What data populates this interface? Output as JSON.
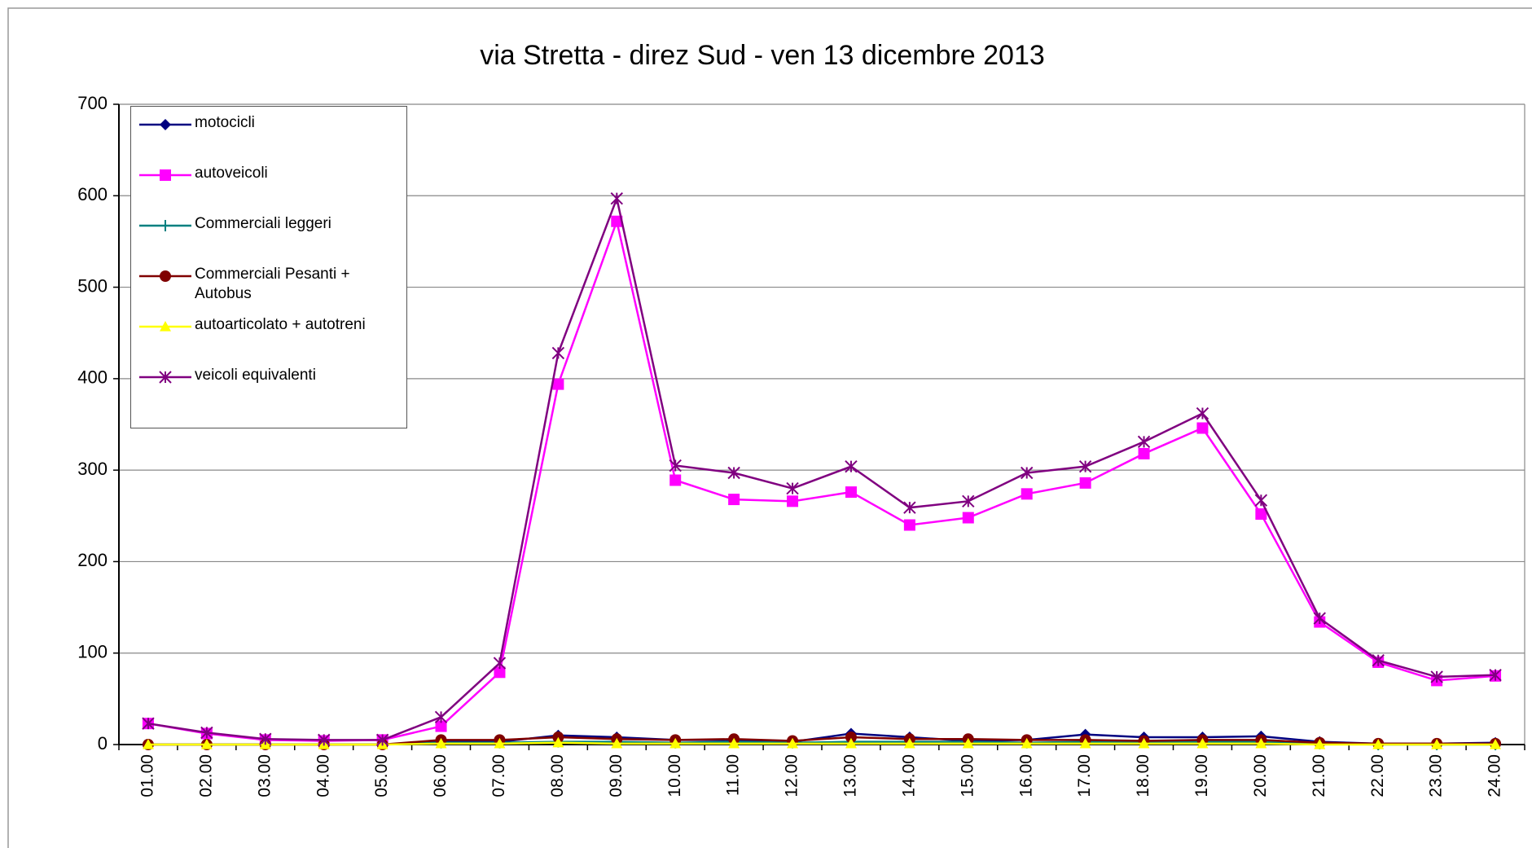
{
  "chart_data": {
    "type": "line",
    "title": "via  Stretta - direz Sud - ven 13 dicembre 2013",
    "categories": [
      "01.00",
      "02.00",
      "03.00",
      "04.00",
      "05.00",
      "06.00",
      "07.00",
      "08.00",
      "09.00",
      "10.00",
      "11.00",
      "12.00",
      "13.00",
      "14.00",
      "15.00",
      "16.00",
      "17.00",
      "18.00",
      "19.00",
      "20.00",
      "21.00",
      "22.00",
      "23.00",
      "24.00"
    ],
    "series": [
      {
        "name": "motocicli",
        "color": "#000080",
        "marker": "diamond",
        "values": [
          0,
          0,
          0,
          0,
          0,
          3,
          3,
          10,
          8,
          5,
          5,
          3,
          12,
          8,
          4,
          5,
          11,
          8,
          8,
          9,
          3,
          1,
          1,
          2
        ]
      },
      {
        "name": "autoveicoli",
        "color": "#ff00ff",
        "marker": "square",
        "values": [
          23,
          12,
          5,
          4,
          5,
          20,
          79,
          394,
          572,
          289,
          268,
          266,
          276,
          240,
          248,
          274,
          286,
          318,
          346,
          252,
          134,
          90,
          70,
          75
        ]
      },
      {
        "name": "Commerciali leggeri",
        "color": "#008080",
        "marker": "plus",
        "values": [
          0,
          0,
          0,
          0,
          0,
          2,
          2,
          3,
          3,
          2,
          3,
          2,
          3,
          3,
          3,
          2,
          3,
          3,
          3,
          3,
          1,
          0,
          0,
          0
        ]
      },
      {
        "name": "Commerciali Pesanti + Autobus",
        "color": "#800000",
        "marker": "circle",
        "values": [
          0,
          0,
          0,
          0,
          0,
          5,
          5,
          8,
          6,
          5,
          6,
          4,
          8,
          6,
          6,
          5,
          5,
          4,
          5,
          5,
          2,
          1,
          1,
          1
        ]
      },
      {
        "name": "autoarticolato + autotreni",
        "color": "#ffff00",
        "marker": "triangle",
        "values": [
          0,
          0,
          0,
          0,
          0,
          1,
          1,
          2,
          1,
          1,
          1,
          1,
          1,
          1,
          1,
          1,
          1,
          1,
          1,
          1,
          0,
          0,
          0,
          0
        ]
      },
      {
        "name": "veicoli equivalenti",
        "color": "#800080",
        "marker": "star",
        "values": [
          23,
          13,
          6,
          5,
          5,
          30,
          89,
          428,
          597,
          305,
          297,
          280,
          304,
          259,
          266,
          297,
          304,
          331,
          362,
          267,
          138,
          92,
          74,
          76
        ]
      }
    ],
    "ylim": [
      0,
      700
    ],
    "yticks": [
      0,
      100,
      200,
      300,
      400,
      500,
      600,
      700
    ],
    "grid": true,
    "legend": "upper left"
  }
}
